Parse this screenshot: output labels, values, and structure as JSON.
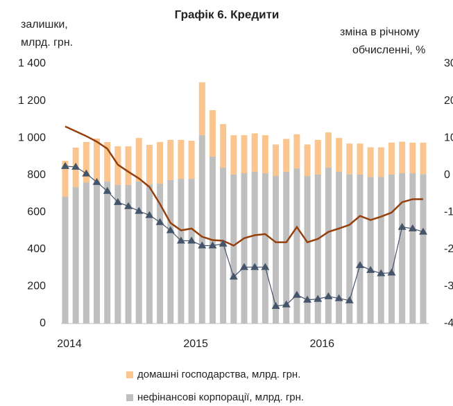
{
  "chart_data": {
    "type": "bar",
    "title": "Графік 6. Кредити",
    "y_label_lines": [
      "залишки,",
      "млрд. грн."
    ],
    "y2_label_lines": [
      "зміна в річному",
      "обчисленні, %"
    ],
    "categories": [
      "2014",
      null,
      null,
      null,
      null,
      null,
      null,
      null,
      null,
      null,
      null,
      null,
      "2015",
      null,
      null,
      null,
      null,
      null,
      null,
      null,
      null,
      null,
      null,
      null,
      "2016",
      null,
      null,
      null,
      null,
      null,
      null,
      null,
      null,
      null,
      null
    ],
    "stacked": true,
    "series": [
      {
        "name": "нефінансові корпорації, млрд. грн.",
        "color": "#bfbfbf",
        "type": "bar",
        "values": [
          683,
          735,
          760,
          765,
          765,
          747,
          747,
          765,
          750,
          754,
          773,
          780,
          780,
          1015,
          900,
          840,
          803,
          810,
          818,
          810,
          795,
          818,
          836,
          795,
          803,
          840,
          818,
          805,
          803,
          790,
          790,
          803,
          810,
          810,
          805
        ]
      },
      {
        "name": "домашні господарства, млрд. грн.",
        "color": "#fbc58f",
        "type": "bar",
        "values": [
          194,
          213,
          218,
          232,
          213,
          208,
          208,
          235,
          213,
          224,
          217,
          210,
          205,
          285,
          250,
          235,
          212,
          205,
          207,
          205,
          170,
          177,
          184,
          170,
          187,
          190,
          182,
          165,
          167,
          160,
          160,
          172,
          170,
          165,
          170
        ]
      },
      {
        "color": "#953f0d",
        "type": "line",
        "axis": "y2",
        "values": [
          13.1,
          11.8,
          10.5,
          9.0,
          7.1,
          2.8,
          0.9,
          -0.9,
          -3.2,
          -7.8,
          -12.9,
          -14.9,
          -14.4,
          -16.6,
          -17.5,
          -17.7,
          -19.0,
          -17.0,
          -16.2,
          -15.9,
          -18.1,
          -18.1,
          -14.0,
          -18.1,
          -17.2,
          -15.3,
          -14.4,
          -13.4,
          -11.0,
          -12.1,
          -11.2,
          -10.1,
          -7.3,
          -6.5,
          -6.5
        ]
      },
      {
        "color": "#44546a",
        "type": "line",
        "axis": "y2",
        "marker": "triangle",
        "values": [
          2.4,
          2.2,
          0.4,
          -1.9,
          -4.3,
          -7.3,
          -8.4,
          -9.7,
          -10.8,
          -12.7,
          -14.9,
          -17.7,
          -17.7,
          -19.0,
          -19.0,
          -18.5,
          -27.4,
          -24.8,
          -24.8,
          -24.8,
          -35.3,
          -34.9,
          -32.3,
          -33.6,
          -33.4,
          -32.7,
          -33.2,
          -33.8,
          -24.3,
          -25.6,
          -26.5,
          -26.3,
          -14.0,
          -14.4,
          -15.3
        ]
      }
    ],
    "ylim": [
      0,
      1400
    ],
    "yticks": [
      0,
      200,
      400,
      600,
      800,
      {
        "value": 1000,
        "label": "1 000"
      },
      {
        "value": 1200,
        "label": "1 200"
      },
      {
        "value": 1400,
        "label": "1 400"
      }
    ],
    "y2lim": [
      -40,
      30
    ],
    "y2ticks": [
      -40,
      -30,
      -20,
      -10,
      0,
      10,
      20,
      30
    ],
    "grid": false
  }
}
